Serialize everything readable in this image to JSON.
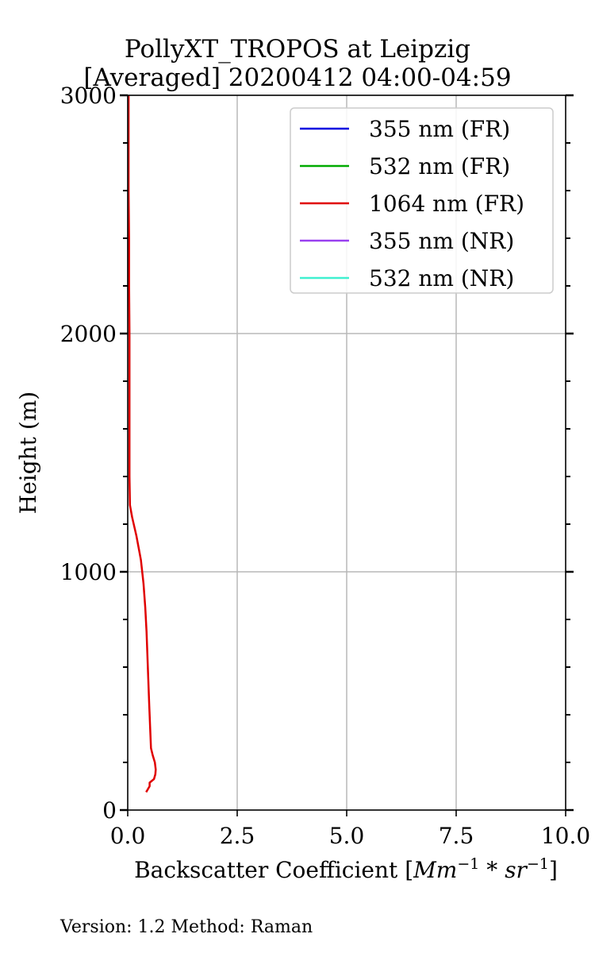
{
  "chart_data": {
    "type": "line",
    "title": "PollyXT_TROPOS at Leipzig",
    "subtitle": "[Averaged] 20200412 04:00-04:59",
    "xlabel": "Backscatter Coefficient [",
    "xlabel_math": "Mm",
    "xlabel_sup1": "−1",
    "xlabel_mid": " * ",
    "xlabel_math2": "sr",
    "xlabel_sup2": "−1",
    "xlabel_end": "]",
    "ylabel": "Height (m)",
    "xlim": [
      0,
      10
    ],
    "ylim": [
      0,
      3000
    ],
    "xticks": [
      0,
      2.5,
      5,
      7.5,
      10
    ],
    "xtick_labels": [
      "0.0",
      "2.5",
      "5.0",
      "7.5",
      "10.0"
    ],
    "yticks": [
      0,
      1000,
      2000,
      3000
    ],
    "ytick_labels": [
      "0",
      "1000",
      "2000",
      "3000"
    ],
    "grid": true,
    "legend_position": "top-right",
    "series": [
      {
        "name": "355 nm (FR)",
        "color": "#0000e0",
        "points": []
      },
      {
        "name": "532 nm (FR)",
        "color": "#00aa00",
        "points": []
      },
      {
        "name": "1064 nm (FR)",
        "color": "#e00000",
        "points": [
          [
            0.42,
            75
          ],
          [
            0.5,
            100
          ],
          [
            0.5,
            115
          ],
          [
            0.6,
            130
          ],
          [
            0.63,
            150
          ],
          [
            0.64,
            170
          ],
          [
            0.62,
            200
          ],
          [
            0.57,
            230
          ],
          [
            0.53,
            260
          ],
          [
            0.51,
            350
          ],
          [
            0.49,
            450
          ],
          [
            0.47,
            550
          ],
          [
            0.45,
            650
          ],
          [
            0.43,
            750
          ],
          [
            0.4,
            850
          ],
          [
            0.36,
            950
          ],
          [
            0.3,
            1050
          ],
          [
            0.2,
            1150
          ],
          [
            0.1,
            1230
          ],
          [
            0.05,
            1280
          ],
          [
            0.04,
            1400
          ],
          [
            0.04,
            1600
          ],
          [
            0.04,
            1800
          ],
          [
            0.04,
            2000
          ],
          [
            0.03,
            2200
          ],
          [
            0.03,
            2400
          ],
          [
            0.02,
            2600
          ],
          [
            0.02,
            2800
          ],
          [
            0.02,
            3000
          ]
        ]
      },
      {
        "name": "355 nm (NR)",
        "color": "#9940f0",
        "points": []
      },
      {
        "name": "532 nm (NR)",
        "color": "#40f0d0",
        "points": []
      }
    ]
  },
  "footer": "Version: 1.2  Method: Raman"
}
